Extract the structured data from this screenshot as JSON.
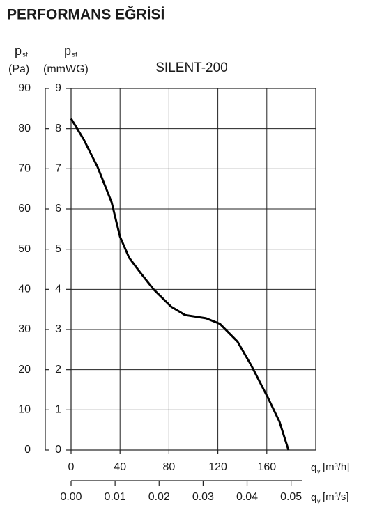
{
  "chart_data": {
    "type": "line",
    "heading": "PERFORMANS EĞRİSİ",
    "title": "SILENT-200",
    "ylabel": {
      "symbol": "p",
      "sub": "sf",
      "unit": "(mmWG)"
    },
    "y2label": {
      "symbol": "p",
      "sub": "sf",
      "unit": "(Pa)"
    },
    "xlabel": {
      "symbol": "q",
      "sub": "v",
      "unit": "[m³/h]"
    },
    "x2label": {
      "symbol": "q",
      "sub": "v",
      "unit": "[m³/s]"
    },
    "x": [
      0,
      10.3,
      21.7,
      33.1,
      40,
      47.4,
      56,
      67.4,
      81.7,
      93.1,
      110.3,
      121.7,
      136,
      147.4,
      160.6,
      170.3,
      177.7
    ],
    "values": [
      8.25,
      7.73,
      7.04,
      6.17,
      5.31,
      4.79,
      4.44,
      4.0,
      3.57,
      3.36,
      3.28,
      3.14,
      2.7,
      2.1,
      1.32,
      0.71,
      0
    ],
    "color": "#000000",
    "xlim": [
      0,
      200
    ],
    "xticks": [
      0,
      40,
      80,
      120,
      160
    ],
    "x2lim": [
      0,
      0.0556
    ],
    "x2ticks": [
      {
        "value": 0,
        "label": "0.00"
      },
      0.01,
      0.02,
      0.03,
      0.04,
      0.05
    ],
    "ylim": [
      0,
      9
    ],
    "yticks": [
      0,
      1,
      2,
      3,
      4,
      5,
      6,
      7,
      8,
      9
    ],
    "y2lim": [
      0,
      90
    ],
    "y2ticks": [
      0,
      10,
      20,
      30,
      40,
      50,
      60,
      70,
      80,
      90
    ],
    "grid": true
  }
}
